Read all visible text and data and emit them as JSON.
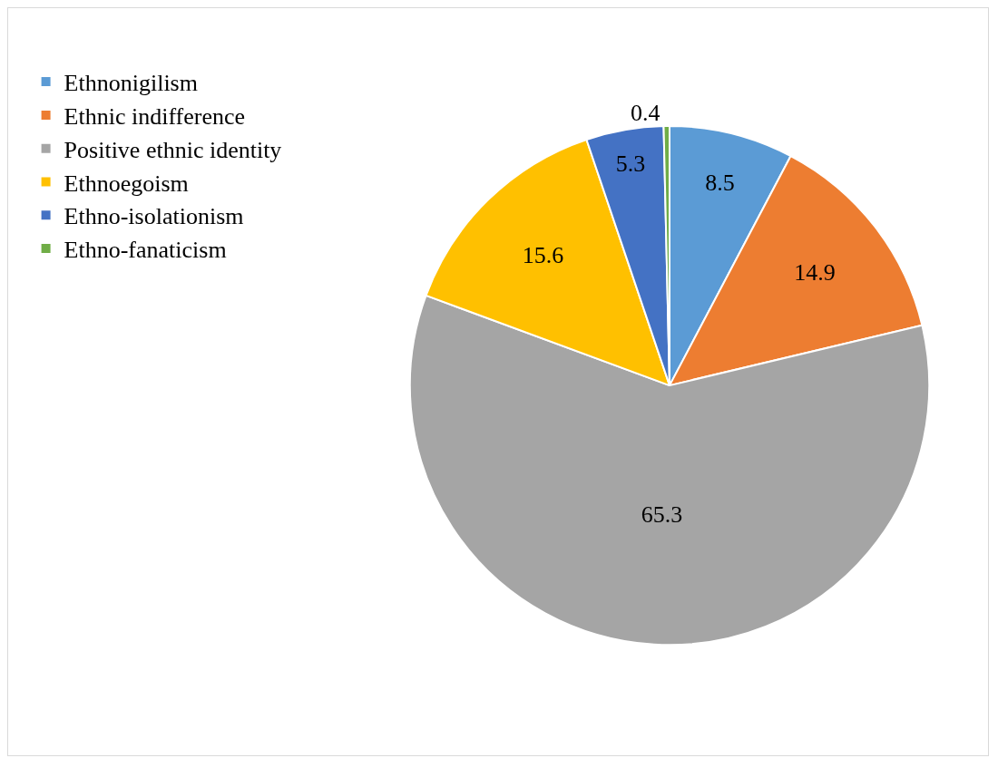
{
  "chart_data": {
    "type": "pie",
    "categories": [
      "Ethnonigilism",
      "Ethnic indifference",
      "Positive ethnic identity",
      "Ethnoegoism",
      "Ethno-isolationism",
      "Ethno-fanaticism"
    ],
    "values": [
      8.5,
      14.9,
      65.3,
      15.6,
      5.3,
      0.4
    ],
    "colors": [
      "#5b9bd5",
      "#ed7d31",
      "#a5a5a5",
      "#ffc000",
      "#4472c4",
      "#70ad47"
    ],
    "data_labels": true,
    "legend": "top left"
  }
}
